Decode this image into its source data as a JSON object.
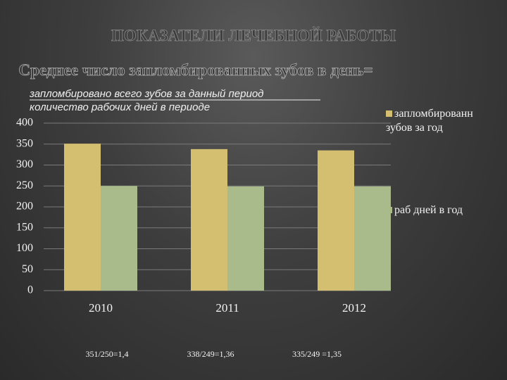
{
  "chart_data": {
    "type": "bar",
    "title": "ПОКАЗАТЕЛИ ЛЕЧЕБНОЙ РАБОТЫ",
    "subtitle": "Среднее число запломбированных зубов в день=",
    "formula_numerator": "запломбировано всего зубов за данный  период",
    "formula_denominator": "количество  рабочих  дней  в  периоде",
    "categories": [
      "2010",
      "2011",
      "2012"
    ],
    "series": [
      {
        "name": "запломбированн зубов за год",
        "color": "#d3bf6f",
        "values": [
          351,
          338,
          335
        ]
      },
      {
        "name": "раб дней в год",
        "color": "#a9bb8b",
        "values": [
          250,
          249,
          249
        ]
      }
    ],
    "annotations": [
      "351/250=1,4",
      "338/249=1,36",
      "335/249 =1,35"
    ],
    "ylim": [
      0,
      400
    ],
    "yticks": [
      0,
      50,
      100,
      150,
      200,
      250,
      300,
      350,
      400
    ],
    "grid": true
  }
}
